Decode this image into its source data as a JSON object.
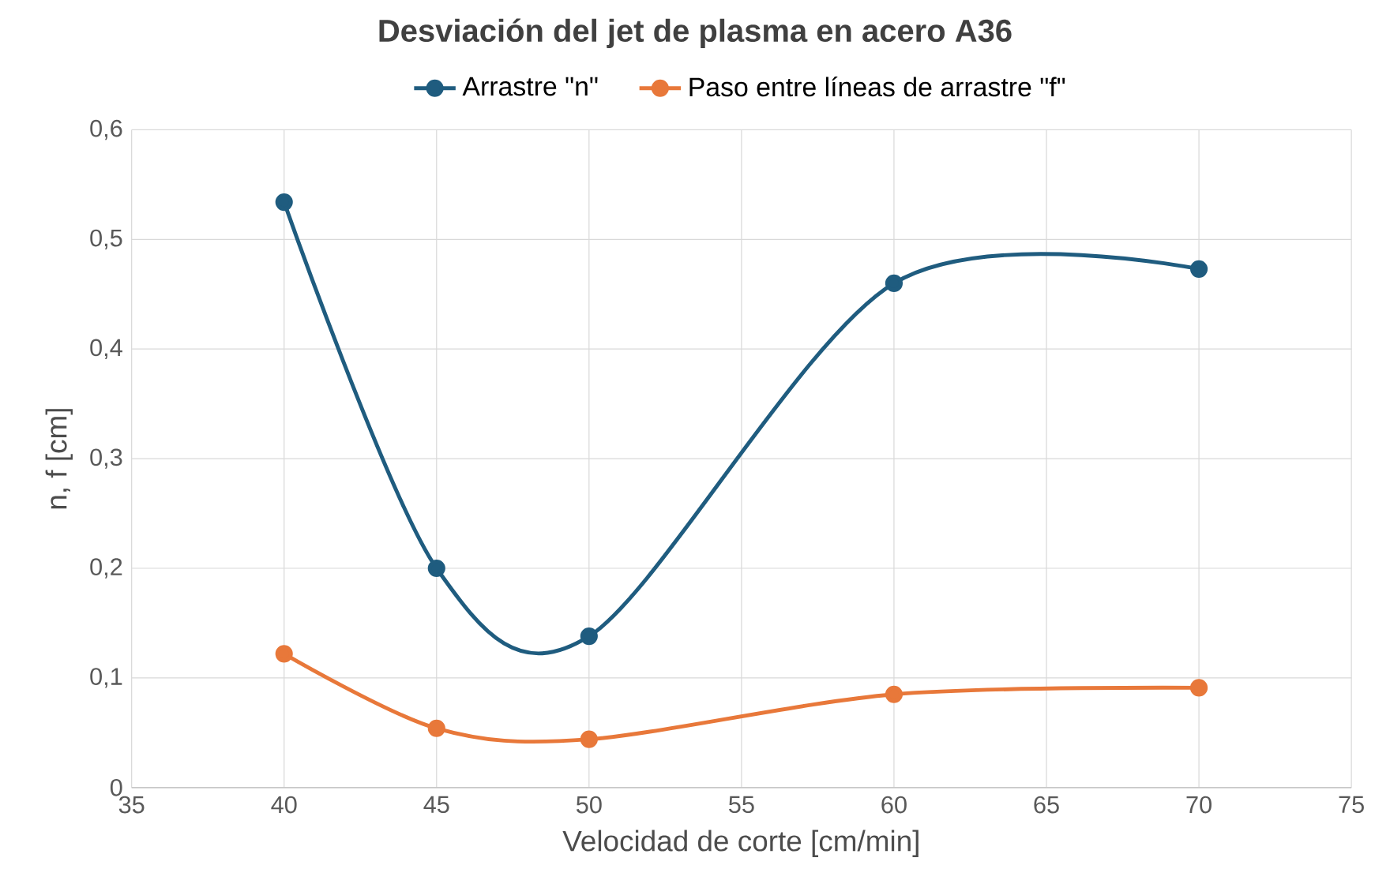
{
  "chart_data": {
    "type": "line",
    "title": "Desviación del jet de plasma  en acero A36",
    "xlabel": "Velocidad de corte [cm/min]",
    "ylabel": "n, f [cm]",
    "x": [
      40,
      45,
      50,
      60,
      70
    ],
    "series": [
      {
        "name": "Arrastre \"n\"",
        "color": "#1f5c7f",
        "values": [
          0.534,
          0.2,
          0.138,
          0.46,
          0.473
        ]
      },
      {
        "name": "Paso entre líneas de arrastre \"f\"",
        "color": "#e8783a",
        "values": [
          0.122,
          0.054,
          0.044,
          0.085,
          0.091
        ]
      }
    ],
    "xlim": [
      35,
      75
    ],
    "xticks": [
      35,
      40,
      45,
      50,
      55,
      60,
      65,
      70,
      75
    ],
    "ylim": [
      0,
      0.6
    ],
    "yticks": [
      {
        "value": 0,
        "label": "0"
      },
      {
        "value": 0.1,
        "label": "0,1"
      },
      {
        "value": 0.2,
        "label": "0,2"
      },
      {
        "value": 0.3,
        "label": "0,3"
      },
      {
        "value": 0.4,
        "label": "0,4"
      },
      {
        "value": 0.5,
        "label": "0,5"
      },
      {
        "value": 0.6,
        "label": "0,6"
      }
    ],
    "grid": true,
    "legend": "top",
    "marker": "circle",
    "line_style": "solid"
  }
}
